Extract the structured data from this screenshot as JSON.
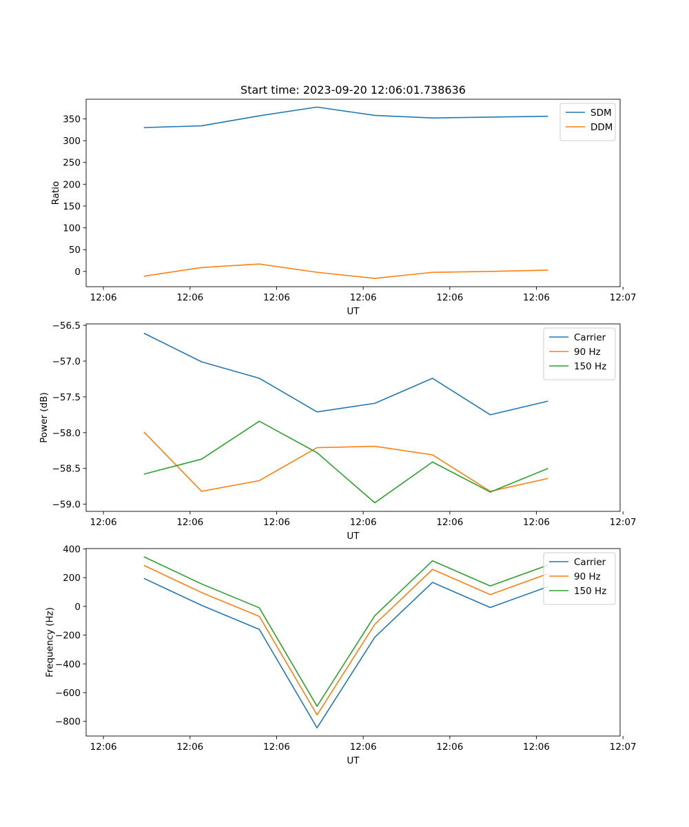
{
  "figure_title": "Start time: 2023-09-20 12:06:01.738636",
  "chart_data": [
    {
      "type": "line",
      "title": "Start time: 2023-09-20 12:06:01.738636",
      "xlabel": "UT",
      "ylabel": "Ratio",
      "x": [
        1,
        2,
        3,
        4,
        5,
        6,
        7,
        8
      ],
      "xlim": [
        0,
        9.25
      ],
      "x_ticks": [
        0.3,
        1.8,
        3.3,
        4.8,
        6.3,
        7.8,
        9.3
      ],
      "x_tick_labels": [
        "12:06",
        "12:06",
        "12:06",
        "12:06",
        "12:06",
        "12:06",
        "12:07"
      ],
      "ylim": [
        -35,
        395
      ],
      "y_ticks": [
        0,
        50,
        100,
        150,
        200,
        250,
        300,
        350
      ],
      "y_tick_labels": [
        "0",
        "50",
        "100",
        "150",
        "200",
        "250",
        "300",
        "350"
      ],
      "legend_position": "top-right",
      "series": [
        {
          "name": "SDM",
          "color": "#1f77b4",
          "values": [
            330,
            334,
            357,
            377,
            358,
            352,
            354,
            356
          ]
        },
        {
          "name": "DDM",
          "color": "#ff7f0e",
          "values": [
            -11,
            9,
            17,
            -2,
            -16,
            -2,
            0,
            3
          ]
        }
      ]
    },
    {
      "type": "line",
      "title": "",
      "xlabel": "UT",
      "ylabel": "Power (dB)",
      "x": [
        1,
        2,
        3,
        4,
        5,
        6,
        7,
        8
      ],
      "xlim": [
        0,
        9.25
      ],
      "x_ticks": [
        0.3,
        1.8,
        3.3,
        4.8,
        6.3,
        7.8,
        9.3
      ],
      "x_tick_labels": [
        "12:06",
        "12:06",
        "12:06",
        "12:06",
        "12:06",
        "12:06",
        "12:07"
      ],
      "ylim": [
        -59.1,
        -56.48
      ],
      "y_ticks": [
        -59.0,
        -58.5,
        -58.0,
        -57.5,
        -57.0,
        -56.5
      ],
      "y_tick_labels": [
        "−59.0",
        "−58.5",
        "−58.0",
        "−57.5",
        "−57.0",
        "−56.5"
      ],
      "legend_position": "top-right",
      "series": [
        {
          "name": "Carrier",
          "color": "#1f77b4",
          "values": [
            -56.61,
            -57.01,
            -57.24,
            -57.71,
            -57.59,
            -57.24,
            -57.75,
            -57.56
          ]
        },
        {
          "name": "90 Hz",
          "color": "#ff7f0e",
          "values": [
            -57.99,
            -58.82,
            -58.67,
            -58.21,
            -58.19,
            -58.31,
            -58.82,
            -58.64
          ]
        },
        {
          "name": "150 Hz",
          "color": "#2ca02c",
          "values": [
            -58.58,
            -58.37,
            -57.84,
            -58.28,
            -58.98,
            -58.41,
            -58.83,
            -58.5
          ]
        }
      ]
    },
    {
      "type": "line",
      "title": "",
      "xlabel": "UT",
      "ylabel": "Frequency (Hz)",
      "x": [
        1,
        2,
        3,
        4,
        5,
        6,
        7,
        8
      ],
      "xlim": [
        0,
        9.25
      ],
      "x_ticks": [
        0.3,
        1.8,
        3.3,
        4.8,
        6.3,
        7.8,
        9.3
      ],
      "x_tick_labels": [
        "12:06",
        "12:06",
        "12:06",
        "12:06",
        "12:06",
        "12:06",
        "12:07"
      ],
      "ylim": [
        -902,
        402
      ],
      "y_ticks": [
        -800,
        -600,
        -400,
        -200,
        0,
        200,
        400
      ],
      "y_tick_labels": [
        "−800",
        "−600",
        "−400",
        "−200",
        "0",
        "200",
        "400"
      ],
      "legend_position": "top-right",
      "series": [
        {
          "name": "Carrier",
          "color": "#1f77b4",
          "values": [
            195,
            7,
            -160,
            -845,
            -215,
            167,
            -8,
            137
          ]
        },
        {
          "name": "90 Hz",
          "color": "#ff7f0e",
          "values": [
            285,
            96,
            -70,
            -755,
            -125,
            257,
            82,
            227
          ]
        },
        {
          "name": "150 Hz",
          "color": "#2ca02c",
          "values": [
            345,
            156,
            -10,
            -695,
            -65,
            317,
            142,
            287
          ]
        }
      ]
    }
  ]
}
